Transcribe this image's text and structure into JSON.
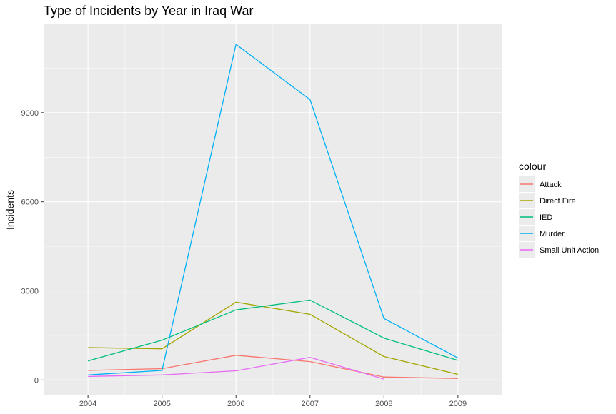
{
  "chart_data": {
    "type": "line",
    "title": "Type of Incidents by Year in Iraq War",
    "xlabel": "",
    "ylabel": "Incidents",
    "x": [
      2004,
      2005,
      2006,
      2007,
      2008,
      2009
    ],
    "x_ticks": [
      "2004",
      "2005",
      "2006",
      "2007",
      "2008",
      "2009"
    ],
    "xlim": [
      2003.4,
      2009.6
    ],
    "ylim": [
      -520,
      12000
    ],
    "y_ticks": [
      0,
      3000,
      6000,
      9000
    ],
    "y_tick_labels": [
      "0",
      "3000",
      "6000",
      "9000"
    ],
    "grid": true,
    "legend": {
      "title": "colour",
      "position": "right"
    },
    "series": [
      {
        "name": "Attack",
        "color": "#F8766D",
        "values": [
          320,
          380,
          830,
          620,
          100,
          50
        ]
      },
      {
        "name": "Direct Fire",
        "color": "#A3A500",
        "values": [
          1090,
          1050,
          2620,
          2210,
          790,
          190
        ]
      },
      {
        "name": "IED",
        "color": "#00BF7D",
        "values": [
          640,
          1340,
          2360,
          2690,
          1410,
          660
        ]
      },
      {
        "name": "Murder",
        "color": "#00B0F6",
        "values": [
          170,
          320,
          11300,
          9440,
          2070,
          740
        ]
      },
      {
        "name": "Small Unit Action",
        "color": "#E76BF3",
        "values": [
          120,
          170,
          310,
          760,
          30,
          null
        ]
      }
    ]
  },
  "colors": {
    "panel_background": "#EBEBEB",
    "grid_major": "#FFFFFF",
    "tick_text": "#4D4D4D"
  }
}
